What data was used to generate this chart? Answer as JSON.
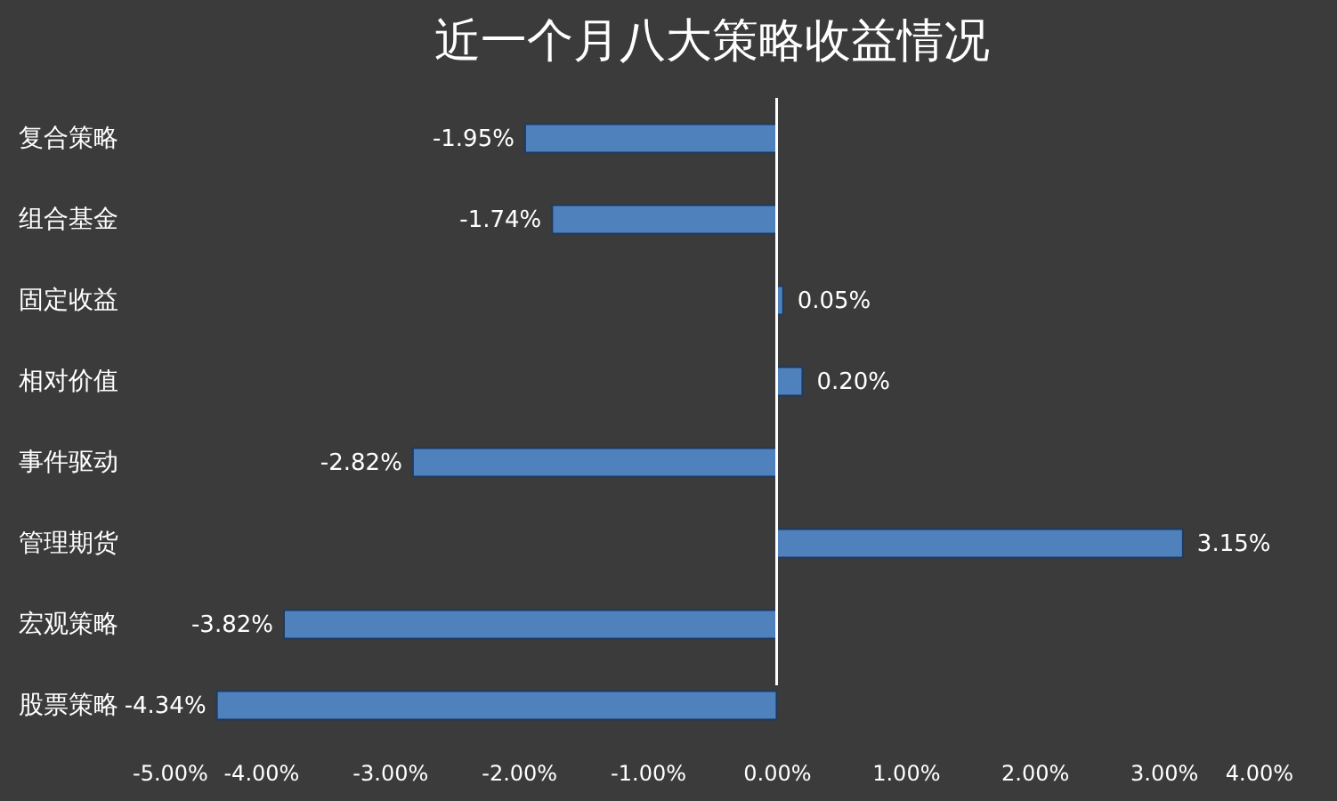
{
  "chart_data": {
    "type": "bar",
    "orientation": "horizontal",
    "title": "近一个月八大策略收益情况",
    "categories": [
      "复合策略",
      "组合基金",
      "固定收益",
      "相对价值",
      "事件驱动",
      "管理期货",
      "宏观策略",
      "股票策略"
    ],
    "values": [
      -1.95,
      -1.74,
      0.05,
      0.2,
      -2.82,
      3.15,
      -3.82,
      -4.34
    ],
    "value_labels": [
      "-1.95%",
      "-1.74%",
      "0.05%",
      "0.20%",
      "-2.82%",
      "3.15%",
      "-3.82%",
      "-4.34%"
    ],
    "color": "#4f81bd",
    "xlim": [
      -5,
      4
    ],
    "xticks": [
      {
        "value": -5,
        "label": "-5.00%"
      },
      {
        "value": -4,
        "label": "-4.00%"
      },
      {
        "value": -3,
        "label": "-3.00%"
      },
      {
        "value": -2,
        "label": "-2.00%"
      },
      {
        "value": -1,
        "label": "-1.00%"
      },
      {
        "value": 0,
        "label": "0.00%"
      },
      {
        "value": 1,
        "label": "1.00%"
      },
      {
        "value": 2,
        "label": "2.00%"
      },
      {
        "value": 3,
        "label": "3.00%"
      },
      {
        "value": 4,
        "label": "4.00%"
      }
    ]
  }
}
